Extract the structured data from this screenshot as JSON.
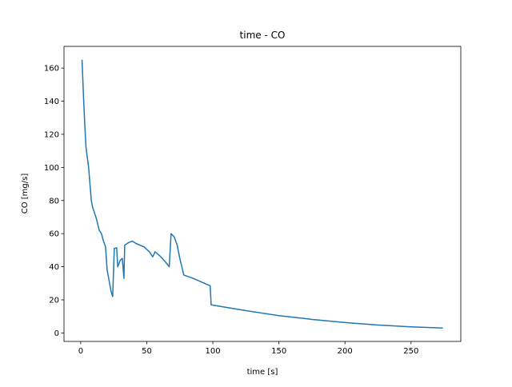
{
  "chart_data": {
    "type": "line",
    "title": "time - CO",
    "xlabel": "time [s]",
    "ylabel": "CO [mg/s]",
    "x": [
      1,
      2,
      3,
      4,
      6,
      8,
      9,
      11.5,
      12.5,
      14,
      15.7,
      17,
      18.8,
      20,
      23,
      24.2,
      25.4,
      27.2,
      28,
      30,
      31.5,
      32.7,
      33.3,
      36,
      39,
      42,
      48,
      52,
      54.5,
      56.3,
      60,
      64,
      67,
      68.4,
      70.8,
      73,
      75,
      78,
      85,
      98,
      98.7,
      110,
      125,
      150,
      175,
      200,
      225,
      250,
      274
    ],
    "series": [
      {
        "name": "CO",
        "color": "#1f77b4",
        "values": [
          165,
          145,
          127,
          112,
          100,
          80,
          76,
          70,
          67,
          62,
          60,
          56,
          52,
          38,
          25,
          22,
          51,
          51.5,
          40,
          44,
          45,
          33,
          53,
          54.5,
          55.5,
          54,
          52,
          49,
          46,
          49,
          46.5,
          43,
          40,
          60,
          58,
          53,
          45,
          35,
          33,
          28.5,
          17,
          15.5,
          13.5,
          10.5,
          8.2,
          6.3,
          4.8,
          3.7,
          3
        ]
      }
    ],
    "xlim": [
      -12.65,
      287.65
    ],
    "ylim": [
      -5.1,
      173.1
    ],
    "xticks": [
      0,
      50,
      100,
      150,
      200,
      250
    ],
    "yticks": [
      0,
      20,
      40,
      60,
      80,
      100,
      120,
      140,
      160
    ]
  }
}
